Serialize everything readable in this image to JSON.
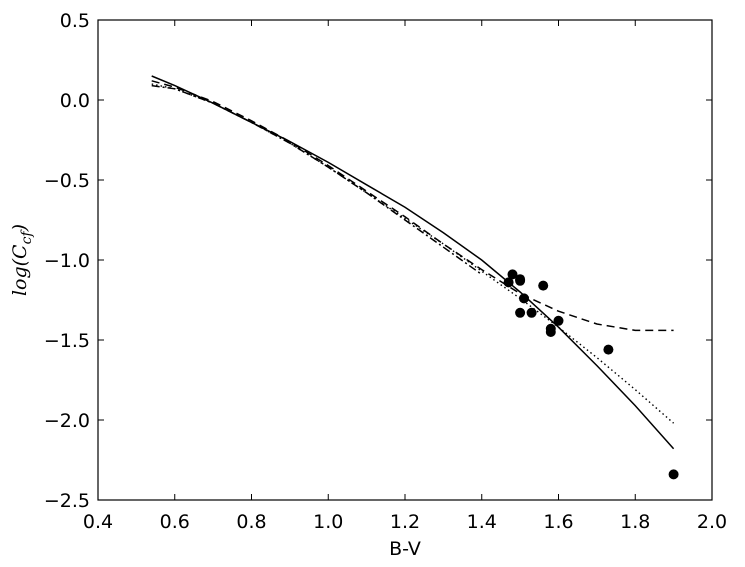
{
  "chart_data": {
    "type": "scatter",
    "title": "",
    "xlabel": "B-V",
    "ylabel": "log(C_cf)",
    "ylabel_main": "log(C",
    "ylabel_sub": "cf",
    "ylabel_close": ")",
    "xlim": [
      0.4,
      2.0
    ],
    "ylim": [
      -2.5,
      0.5
    ],
    "x_ticks": [
      0.4,
      0.6,
      0.8,
      1.0,
      1.2,
      1.4,
      1.6,
      1.8,
      2.0
    ],
    "x_tick_labels": [
      "0.4",
      "0.6",
      "0.8",
      "1.0",
      "1.2",
      "1.4",
      "1.6",
      "1.8",
      "2.0"
    ],
    "y_ticks": [
      0.5,
      0.0,
      -0.5,
      -1.0,
      -1.5,
      -2.0,
      -2.5
    ],
    "y_tick_labels": [
      "0.5",
      "0.0",
      "−0.5",
      "−1.0",
      "−1.5",
      "−2.0",
      "−2.5"
    ],
    "grid": false,
    "legend": "none",
    "points": [
      {
        "x": 1.47,
        "y": -1.14
      },
      {
        "x": 1.48,
        "y": -1.09
      },
      {
        "x": 1.5,
        "y": -1.12
      },
      {
        "x": 1.5,
        "y": -1.13
      },
      {
        "x": 1.5,
        "y": -1.33
      },
      {
        "x": 1.51,
        "y": -1.24
      },
      {
        "x": 1.53,
        "y": -1.33
      },
      {
        "x": 1.56,
        "y": -1.16
      },
      {
        "x": 1.58,
        "y": -1.43
      },
      {
        "x": 1.58,
        "y": -1.45
      },
      {
        "x": 1.6,
        "y": -1.38
      },
      {
        "x": 1.73,
        "y": -1.56
      },
      {
        "x": 1.9,
        "y": -2.34
      }
    ],
    "curves": [
      {
        "style": "solid",
        "x": [
          0.54,
          0.6,
          0.7,
          0.8,
          0.9,
          1.0,
          1.1,
          1.2,
          1.3,
          1.4,
          1.5,
          1.6,
          1.7,
          1.8,
          1.9
        ],
        "y": [
          0.15,
          0.09,
          -0.02,
          -0.14,
          -0.26,
          -0.39,
          -0.53,
          -0.67,
          -0.83,
          -1.0,
          -1.2,
          -1.42,
          -1.66,
          -1.91,
          -2.18
        ]
      },
      {
        "style": "dashed",
        "x": [
          0.54,
          0.6,
          0.7,
          0.8,
          0.9,
          1.0,
          1.1,
          1.2,
          1.3,
          1.4,
          1.5,
          1.6,
          1.7,
          1.8,
          1.9
        ],
        "y": [
          0.12,
          0.08,
          -0.01,
          -0.13,
          -0.26,
          -0.41,
          -0.57,
          -0.73,
          -0.9,
          -1.06,
          -1.21,
          -1.32,
          -1.4,
          -1.44,
          -1.44
        ]
      },
      {
        "style": "dotted",
        "x": [
          0.54,
          0.6,
          0.7,
          0.8,
          0.9,
          1.0,
          1.1,
          1.2,
          1.3,
          1.4,
          1.5,
          1.6,
          1.7,
          1.8,
          1.9
        ],
        "y": [
          0.1,
          0.07,
          -0.02,
          -0.14,
          -0.27,
          -0.42,
          -0.58,
          -0.74,
          -0.9,
          -1.07,
          -1.24,
          -1.42,
          -1.61,
          -1.81,
          -2.02
        ]
      },
      {
        "style": "dashdot",
        "x": [
          0.54,
          0.6,
          0.7,
          0.8,
          0.9,
          1.0,
          1.1,
          1.2,
          1.3,
          1.4
        ],
        "y": [
          0.09,
          0.07,
          -0.02,
          -0.14,
          -0.27,
          -0.42,
          -0.58,
          -0.75,
          -0.92,
          -1.09
        ]
      }
    ]
  }
}
